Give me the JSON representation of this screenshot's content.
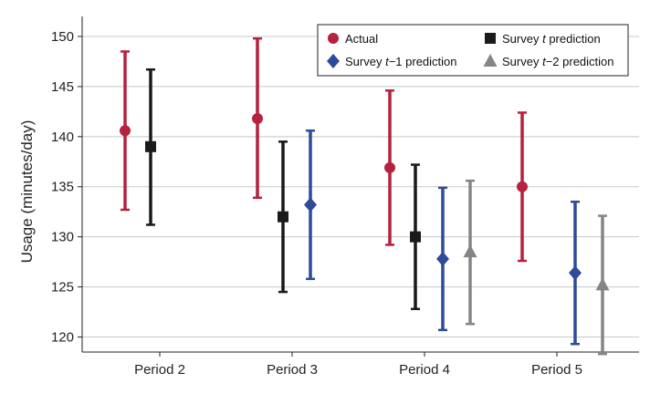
{
  "chart_data": {
    "type": "scatter",
    "ylabel": "Usage (minutes/day)",
    "ylim": [
      118.5,
      152
    ],
    "yticks": [
      120,
      125,
      130,
      135,
      140,
      145,
      150
    ],
    "grid": "horizontal",
    "legend_position": "top-right",
    "categories": [
      "Period 2",
      "Period 3",
      "Period 4",
      "Period 5"
    ],
    "series": [
      {
        "name": "Actual",
        "marker": "circle",
        "color": "#b5213e",
        "points": [
          {
            "category": "Period 2",
            "value": 140.6,
            "low": 132.7,
            "high": 148.5
          },
          {
            "category": "Period 3",
            "value": 141.8,
            "low": 133.9,
            "high": 149.8
          },
          {
            "category": "Period 4",
            "value": 136.9,
            "low": 129.2,
            "high": 144.6
          },
          {
            "category": "Period 5",
            "value": 135.0,
            "low": 127.6,
            "high": 142.4
          }
        ]
      },
      {
        "name": "Survey t prediction",
        "marker": "square",
        "color": "#1a1a1a",
        "points": [
          {
            "category": "Period 2",
            "value": 139.0,
            "low": 131.2,
            "high": 146.7
          },
          {
            "category": "Period 3",
            "value": 132.0,
            "low": 124.5,
            "high": 139.5
          },
          {
            "category": "Period 4",
            "value": 130.0,
            "low": 122.8,
            "high": 137.2
          }
        ]
      },
      {
        "name": "Survey t−1 prediction",
        "marker": "diamond",
        "color": "#2e4a9b",
        "points": [
          {
            "category": "Period 3",
            "value": 133.2,
            "low": 125.8,
            "high": 140.6
          },
          {
            "category": "Period 4",
            "value": 127.8,
            "low": 120.7,
            "high": 134.9
          },
          {
            "category": "Period 5",
            "value": 126.4,
            "low": 119.3,
            "high": 133.5
          }
        ]
      },
      {
        "name": "Survey t−2 prediction",
        "marker": "triangle",
        "color": "#858585",
        "points": [
          {
            "category": "Period 4",
            "value": 128.5,
            "low": 121.3,
            "high": 135.6
          },
          {
            "category": "Period 5",
            "value": 125.2,
            "low": 118.3,
            "high": 132.1
          }
        ]
      }
    ],
    "legend": [
      {
        "series": "Actual",
        "text": "Actual",
        "italic": "",
        "tail": ""
      },
      {
        "series": "Survey t prediction",
        "text": "Survey ",
        "italic": "t",
        "tail": " prediction"
      },
      {
        "series": "Survey t−1 prediction",
        "text": "Survey ",
        "italic": "t",
        "tail": "−1 prediction"
      },
      {
        "series": "Survey t−2 prediction",
        "text": "Survey ",
        "italic": "t",
        "tail": "−2 prediction"
      }
    ]
  }
}
